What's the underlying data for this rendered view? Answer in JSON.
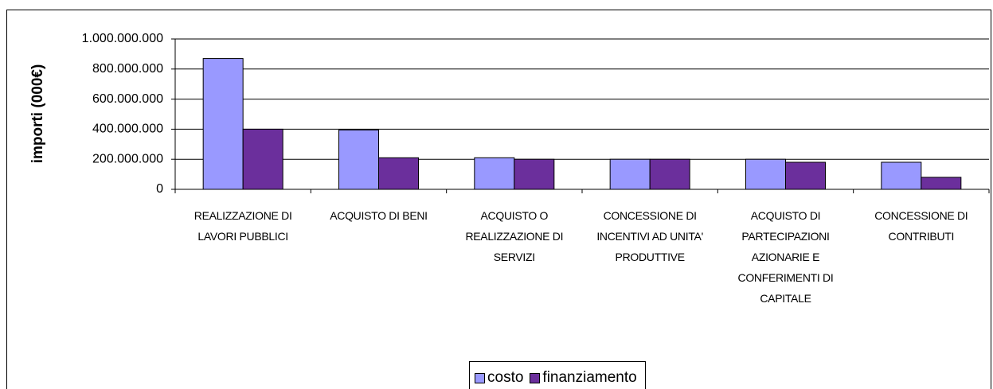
{
  "chart_data": {
    "type": "bar",
    "y_axis_label": "importi (000€)",
    "categories": [
      "REALIZZAZIONE DI LAVORI PUBBLICI",
      "ACQUISTO DI BENI",
      "ACQUISTO O REALIZZAZIONE DI SERVIZI",
      "CONCESSIONE DI INCENTIVI AD UNITA' PRODUTTIVE",
      "ACQUISTO DI PARTECIPAZIONI AZIONARIE E CONFERIMENTI DI CAPITALE",
      "CONCESSIONE DI CONTRIBUTI"
    ],
    "series": [
      {
        "name": "costo",
        "color": "#9999ff",
        "values": [
          870000000,
          395000000,
          210000000,
          200000000,
          200000000,
          180000000
        ]
      },
      {
        "name": "finanziamento",
        "color": "#6b2f9c",
        "values": [
          400000000,
          210000000,
          200000000,
          200000000,
          180000000,
          80000000
        ]
      }
    ],
    "ylim": [
      0,
      1000000000
    ],
    "yticks": [
      0,
      {
        "value": 200000000,
        "label": "200.000.000"
      },
      {
        "value": 400000000,
        "label": "400.000.000"
      },
      {
        "value": 600000000,
        "label": "600.000.000"
      },
      {
        "value": 800000000,
        "label": "800.000.000"
      },
      {
        "value": 1000000000,
        "label": "1.000.000.000"
      }
    ],
    "grid": true,
    "legend": "bottom"
  }
}
